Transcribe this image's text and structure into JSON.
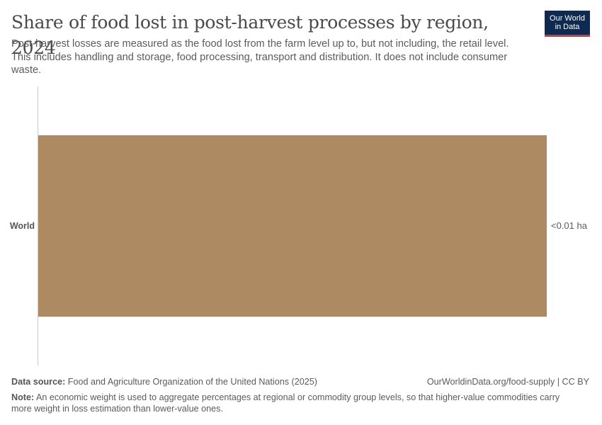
{
  "header": {
    "title": "Share of food lost in post-harvest processes by region, 2024",
    "subtitle": "Post-harvest losses are measured as the food lost from the farm level up to, but not including, the retail level. This includes handling and storage, food processing, transport and distribution. It does not include consumer waste.",
    "logo_line1": "Our World",
    "logo_line2": "in Data"
  },
  "chart_data": {
    "type": "bar",
    "orientation": "horizontal",
    "categories": [
      "World"
    ],
    "values": [
      0.009
    ],
    "value_labels": [
      "<0.01 ha"
    ],
    "color": "#ad8a62",
    "xlim": [
      0,
      0.009
    ],
    "grid": false
  },
  "footer": {
    "source_label": "Data source:",
    "source_text": "Food and Agriculture Organization of the United Nations (2025)",
    "url_text": "OurWorldinData.org/food-supply | CC BY",
    "note_label": "Note:",
    "note_text": "An economic weight is used to aggregate percentages at regional or commodity group levels, so that higher-value commodities carry more weight in loss estimation than lower-value ones."
  }
}
